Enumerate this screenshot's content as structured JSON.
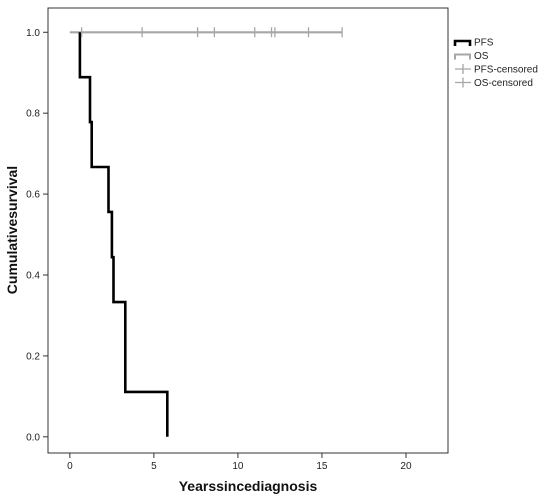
{
  "chart_data": {
    "type": "line",
    "chart_kind": "kaplan-meier step",
    "xlabel": "Yearssincediagnosis",
    "ylabel": "Cumulativesurvival",
    "xlim": [
      -1.3,
      22.5
    ],
    "ylim": [
      -0.04,
      1.06
    ],
    "xticks": [
      0,
      5,
      10,
      15,
      20
    ],
    "xtick_labels": [
      "0",
      "5",
      "10",
      "15",
      "20"
    ],
    "yticks": [
      0.0,
      0.2,
      0.4,
      0.6,
      0.8,
      1.0
    ],
    "ytick_labels": [
      "0.0",
      "0.2",
      "0.4",
      "0.6",
      "0.8",
      "1.0"
    ],
    "grid": false,
    "legend_position": "right",
    "legend": [
      "PFS",
      "OS",
      "PFS-censored",
      "OS-censored"
    ],
    "series": [
      {
        "name": "PFS",
        "color": "#000000",
        "style": "step",
        "points": [
          [
            0.6,
            1.0
          ],
          [
            0.6,
            0.889
          ],
          [
            1.2,
            0.889
          ],
          [
            1.2,
            0.778
          ],
          [
            1.3,
            0.778
          ],
          [
            1.3,
            0.667
          ],
          [
            2.3,
            0.667
          ],
          [
            2.3,
            0.556
          ],
          [
            2.5,
            0.556
          ],
          [
            2.5,
            0.444
          ],
          [
            2.6,
            0.444
          ],
          [
            2.6,
            0.333
          ],
          [
            3.3,
            0.333
          ],
          [
            3.3,
            0.111
          ],
          [
            5.8,
            0.111
          ],
          [
            5.8,
            0.0
          ]
        ]
      },
      {
        "name": "OS",
        "color": "#a6a6a6",
        "style": "step",
        "points": [
          [
            0.0,
            1.0
          ],
          [
            16.2,
            1.0
          ]
        ]
      }
    ],
    "censored": [
      {
        "name": "PFS-censored",
        "color": "#a6a6a6",
        "points": []
      },
      {
        "name": "OS-censored",
        "color": "#a6a6a6",
        "points": [
          [
            0.7,
            1.0
          ],
          [
            4.3,
            1.0
          ],
          [
            7.6,
            1.0
          ],
          [
            8.6,
            1.0
          ],
          [
            11.0,
            1.0
          ],
          [
            12.0,
            1.0
          ],
          [
            12.2,
            1.0
          ],
          [
            14.2,
            1.0
          ],
          [
            16.2,
            1.0
          ]
        ]
      }
    ]
  }
}
